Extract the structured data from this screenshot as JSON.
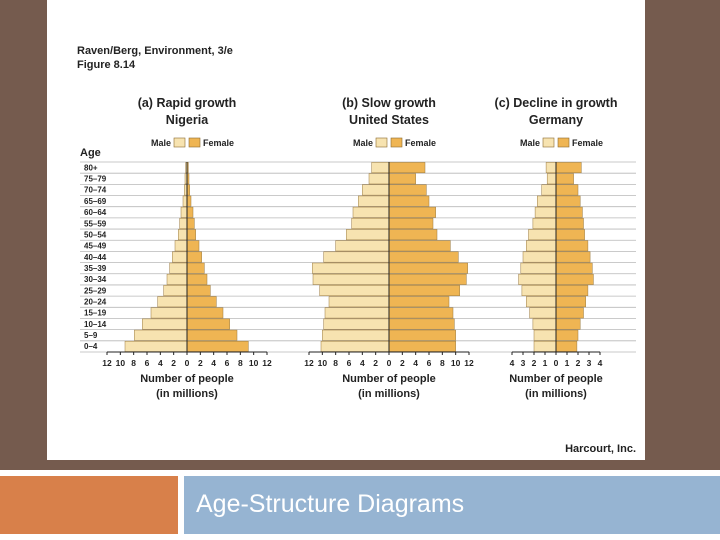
{
  "source_line1": "Raven/Berg, Environment, 3/e",
  "source_line2": "Figure 8.14",
  "credit": "Harcourt, Inc.",
  "slide_title": "Age-Structure Diagrams",
  "colors": {
    "male": "#f7e3b0",
    "female": "#efb553",
    "background": "#755b4e",
    "accent_orange": "#d8804a",
    "accent_blue": "#96b4d2"
  },
  "chart_data": [
    {
      "type": "bar",
      "orientation": "horizontal",
      "title": "(a) Rapid growth",
      "subtitle": "Nigeria",
      "xlabel": "Number of people",
      "xlabel2": "(in millions)",
      "ylabel": "Age",
      "xlim": [
        -12,
        12
      ],
      "xticks": [
        "12",
        "10",
        "8",
        "6",
        "4",
        "2",
        "0",
        "2",
        "4",
        "6",
        "8",
        "10",
        "12"
      ],
      "categories": [
        "80+",
        "75–79",
        "70–74",
        "65–69",
        "60–64",
        "55–59",
        "50–54",
        "45–49",
        "40–44",
        "35–39",
        "30–34",
        "25–29",
        "20–24",
        "15–19",
        "10–14",
        "5–9",
        "0–4"
      ],
      "series": [
        {
          "name": "Male",
          "values": [
            0.2,
            0.3,
            0.4,
            0.6,
            0.9,
            1.1,
            1.3,
            1.8,
            2.2,
            2.6,
            3.0,
            3.5,
            4.4,
            5.4,
            6.7,
            7.9,
            9.3
          ]
        },
        {
          "name": "Female",
          "values": [
            0.2,
            0.3,
            0.4,
            0.6,
            0.9,
            1.1,
            1.3,
            1.8,
            2.2,
            2.6,
            3.0,
            3.5,
            4.4,
            5.4,
            6.4,
            7.5,
            9.2
          ]
        }
      ]
    },
    {
      "type": "bar",
      "orientation": "horizontal",
      "title": "(b) Slow growth",
      "subtitle": "United States",
      "xlabel": "Number of people",
      "xlabel2": "(in millions)",
      "xlim": [
        -12,
        12
      ],
      "xticks": [
        "12",
        "10",
        "8",
        "6",
        "4",
        "2",
        "0",
        "2",
        "4",
        "6",
        "8",
        "10",
        "12"
      ],
      "categories": [
        "80+",
        "75–79",
        "70–74",
        "65–69",
        "60–64",
        "55–59",
        "50–54",
        "45–49",
        "40–44",
        "35–39",
        "30–34",
        "25–29",
        "20–24",
        "15–19",
        "10–14",
        "5–9",
        "0–4"
      ],
      "series": [
        {
          "name": "Male",
          "values": [
            2.6,
            3.0,
            4.0,
            4.6,
            5.4,
            5.6,
            6.4,
            8.0,
            9.8,
            11.5,
            11.4,
            10.4,
            9.0,
            9.6,
            9.8,
            10.0,
            10.2
          ]
        },
        {
          "name": "Female",
          "values": [
            5.4,
            4.0,
            5.6,
            6.0,
            7.0,
            6.6,
            7.2,
            9.2,
            10.4,
            11.8,
            11.6,
            10.6,
            9.0,
            9.6,
            9.8,
            10.0,
            10.0
          ]
        }
      ]
    },
    {
      "type": "bar",
      "orientation": "horizontal",
      "title": "(c) Decline in growth",
      "subtitle": "Germany",
      "xlabel": "Number of people",
      "xlabel2": "(in millions)",
      "xlim": [
        -4,
        4
      ],
      "xticks": [
        "4",
        "3",
        "2",
        "1",
        "0",
        "1",
        "2",
        "3",
        "4"
      ],
      "categories": [
        "80+",
        "75–79",
        "70–74",
        "65–69",
        "60–64",
        "55–59",
        "50–54",
        "45–49",
        "40–44",
        "35–39",
        "30–34",
        "25–29",
        "20–24",
        "15–19",
        "10–14",
        "5–9",
        "0–4"
      ],
      "series": [
        {
          "name": "Male",
          "values": [
            0.9,
            0.8,
            1.3,
            1.7,
            1.9,
            2.1,
            2.5,
            2.7,
            3.0,
            3.2,
            3.4,
            3.1,
            2.7,
            2.4,
            2.1,
            2.0,
            2.0
          ]
        },
        {
          "name": "Female",
          "values": [
            2.3,
            1.6,
            2.0,
            2.2,
            2.4,
            2.5,
            2.6,
            2.9,
            3.1,
            3.3,
            3.4,
            2.9,
            2.7,
            2.5,
            2.2,
            2.0,
            1.9
          ]
        }
      ]
    }
  ]
}
